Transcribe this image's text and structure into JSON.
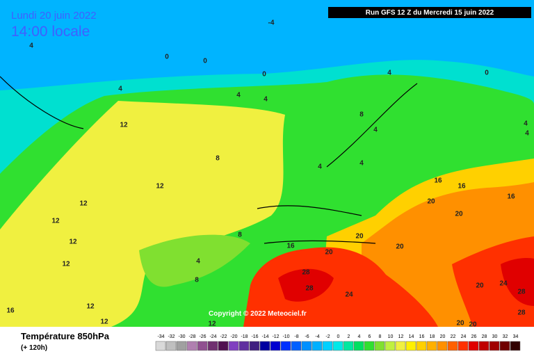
{
  "header": {
    "date": "Lundi 20 juin 2022",
    "time": "14:00 locale",
    "run": "Run GFS 12 Z du Mercredi 15 juin 2022"
  },
  "copyright": "Copyright © 2022 Meteociel.fr",
  "legend": {
    "title": "Température 850hPa",
    "subtitle": "(+ 120h)",
    "ticks": [
      -34,
      -32,
      -30,
      -28,
      -26,
      -24,
      -22,
      -20,
      -18,
      -16,
      -14,
      -12,
      -10,
      -8,
      -6,
      -4,
      -2,
      0,
      2,
      4,
      6,
      8,
      10,
      12,
      14,
      16,
      18,
      20,
      22,
      24,
      26,
      28,
      30,
      32,
      34
    ],
    "colors": [
      "#d9d9d9",
      "#bfbfbf",
      "#a0a0a0",
      "#b080b0",
      "#905090",
      "#703070",
      "#501050",
      "#8040c0",
      "#6030a0",
      "#402080",
      "#0000a0",
      "#0000d0",
      "#0030ff",
      "#0060ff",
      "#0090ff",
      "#00b0ff",
      "#00d0ff",
      "#00e8e8",
      "#00e8a0",
      "#00e060",
      "#30e030",
      "#80e030",
      "#c0f040",
      "#f0f040",
      "#fff000",
      "#ffd000",
      "#ffb000",
      "#ff9000",
      "#ff6000",
      "#ff3000",
      "#e00000",
      "#c00000",
      "#a00000",
      "#700000",
      "#300000"
    ]
  },
  "map_labels": [
    -4,
    4,
    0,
    0,
    0,
    4,
    4,
    4,
    12,
    8,
    12,
    12,
    12,
    12,
    12,
    8,
    4,
    8,
    12,
    12,
    16,
    12,
    16,
    20,
    28,
    28,
    24,
    20,
    20,
    16,
    16,
    20,
    20,
    16,
    20,
    24,
    28,
    28,
    20,
    20,
    4,
    8,
    4,
    4,
    4,
    0,
    4,
    4
  ]
}
